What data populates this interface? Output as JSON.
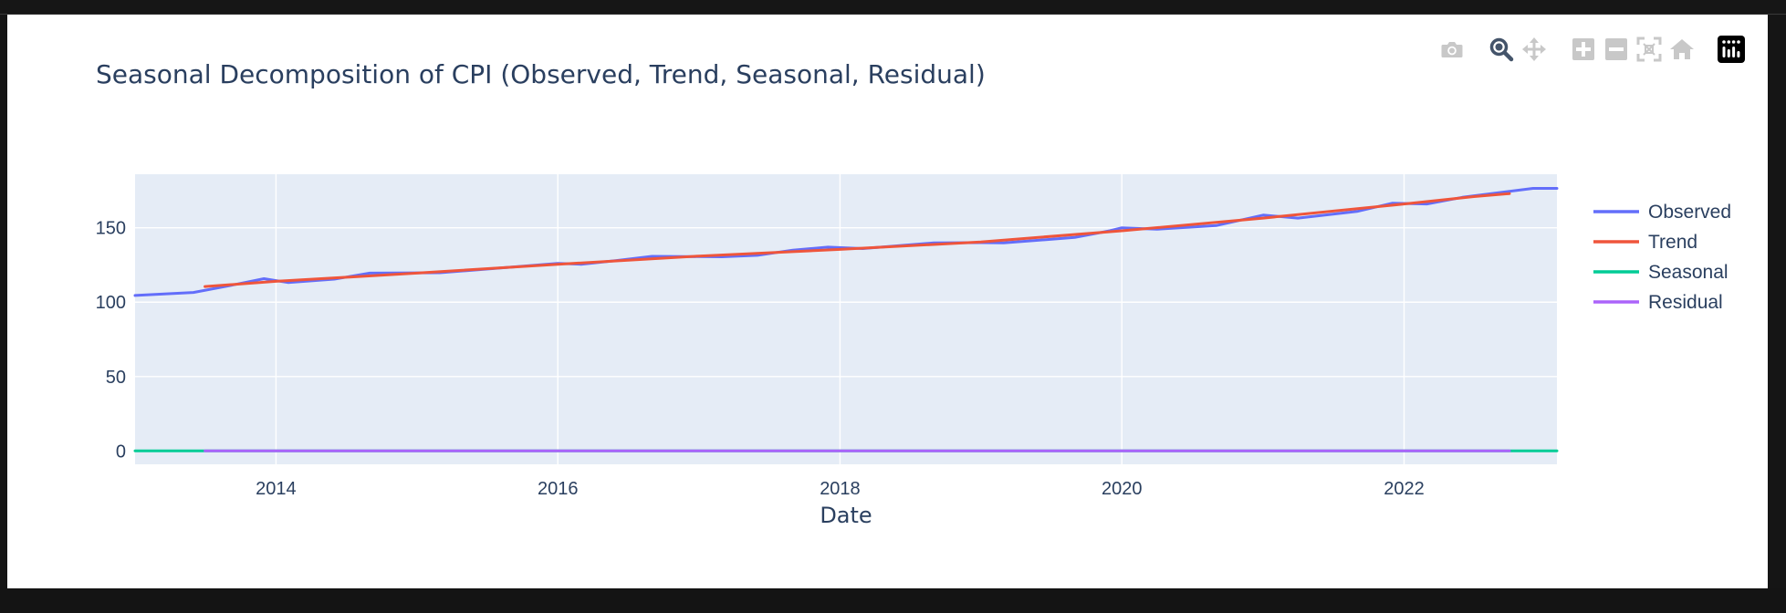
{
  "modebar": {
    "buttons": [
      {
        "name": "camera-icon",
        "title": "Download plot as a png"
      },
      {
        "name": "zoom-icon",
        "title": "Zoom",
        "active": true
      },
      {
        "name": "pan-icon",
        "title": "Pan"
      },
      {
        "name": "zoom-in-icon",
        "title": "Zoom in"
      },
      {
        "name": "zoom-out-icon",
        "title": "Zoom out"
      },
      {
        "name": "autoscale-icon",
        "title": "Autoscale"
      },
      {
        "name": "home-icon",
        "title": "Reset axes"
      },
      {
        "name": "plotly-logo-icon",
        "title": "Produced with Plotly"
      }
    ]
  },
  "chart_data": {
    "type": "line",
    "title": "Seasonal Decomposition of CPI (Observed, Trend, Seasonal, Residual)",
    "xlabel": "Date",
    "ylabel": "",
    "xlim": [
      "2013-01-01",
      "2023-02-01"
    ],
    "ylim": [
      -9,
      186
    ],
    "x_ticks": [
      {
        "value": "2014-01-01",
        "label": "2014"
      },
      {
        "value": "2016-01-01",
        "label": "2016"
      },
      {
        "value": "2018-01-01",
        "label": "2018"
      },
      {
        "value": "2020-01-01",
        "label": "2020"
      },
      {
        "value": "2022-01-01",
        "label": "2022"
      }
    ],
    "y_ticks": [
      0,
      50,
      100,
      150
    ],
    "grid": true,
    "legend_position": "right",
    "background": "#e5ecf6",
    "series": [
      {
        "name": "Observed",
        "color": "#636efa",
        "points": [
          [
            "2013-01-01",
            104.5
          ],
          [
            "2013-06-01",
            106.5
          ],
          [
            "2013-09-01",
            111.0
          ],
          [
            "2013-12-01",
            115.8
          ],
          [
            "2014-02-01",
            113.2
          ],
          [
            "2014-06-01",
            115.5
          ],
          [
            "2014-09-01",
            119.5
          ],
          [
            "2015-03-01",
            119.8
          ],
          [
            "2015-09-01",
            123.5
          ],
          [
            "2016-01-01",
            126.0
          ],
          [
            "2016-03-01",
            125.5
          ],
          [
            "2016-06-01",
            128.0
          ],
          [
            "2016-09-01",
            130.8
          ],
          [
            "2017-03-01",
            130.5
          ],
          [
            "2017-06-01",
            131.5
          ],
          [
            "2017-09-01",
            135.0
          ],
          [
            "2017-12-01",
            137.0
          ],
          [
            "2018-03-01",
            136.0
          ],
          [
            "2018-09-01",
            139.8
          ],
          [
            "2019-01-01",
            140.0
          ],
          [
            "2019-03-01",
            139.8
          ],
          [
            "2019-09-01",
            143.5
          ],
          [
            "2019-12-01",
            148.0
          ],
          [
            "2020-01-01",
            150.0
          ],
          [
            "2020-04-01",
            149.0
          ],
          [
            "2020-09-01",
            151.5
          ],
          [
            "2021-01-01",
            158.5
          ],
          [
            "2021-04-01",
            156.5
          ],
          [
            "2021-09-01",
            161.0
          ],
          [
            "2021-12-01",
            166.5
          ],
          [
            "2022-03-01",
            166.0
          ],
          [
            "2022-06-01",
            170.5
          ],
          [
            "2022-09-01",
            173.5
          ],
          [
            "2022-12-01",
            176.5
          ],
          [
            "2023-02-01",
            176.5
          ]
        ]
      },
      {
        "name": "Trend",
        "color": "#ef553b",
        "points": [
          [
            "2013-07-01",
            110.5
          ],
          [
            "2014-01-01",
            114.0
          ],
          [
            "2015-01-01",
            119.5
          ],
          [
            "2016-01-01",
            125.5
          ],
          [
            "2017-01-01",
            131.0
          ],
          [
            "2018-01-01",
            135.5
          ],
          [
            "2019-01-01",
            140.5
          ],
          [
            "2020-01-01",
            148.0
          ],
          [
            "2021-01-01",
            156.5
          ],
          [
            "2022-01-01",
            166.0
          ],
          [
            "2022-07-01",
            171.0
          ],
          [
            "2022-10-01",
            173.0
          ]
        ]
      },
      {
        "name": "Seasonal",
        "color": "#00cc96",
        "points": [
          [
            "2013-01-01",
            0.0
          ],
          [
            "2023-02-01",
            0.0
          ]
        ]
      },
      {
        "name": "Residual",
        "color": "#ab63fa",
        "points": [
          [
            "2013-07-01",
            0.0
          ],
          [
            "2022-10-01",
            0.0
          ]
        ]
      }
    ]
  }
}
